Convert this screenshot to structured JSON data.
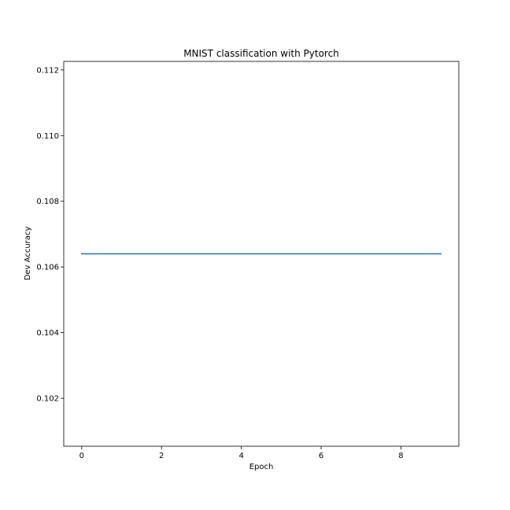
{
  "chart_data": {
    "type": "line",
    "title": "MNIST classification with Pytorch",
    "xlabel": "Epoch",
    "ylabel": "Dev Accuracy",
    "x": [
      0,
      1,
      2,
      3,
      4,
      5,
      6,
      7,
      8,
      9
    ],
    "series": [
      {
        "values": [
          0.1064,
          0.1064,
          0.1064,
          0.1064,
          0.1064,
          0.1064,
          0.1064,
          0.1064,
          0.1064,
          0.1064
        ],
        "color": "#1f77b4"
      }
    ],
    "xlim": [
      -0.45,
      9.45
    ],
    "ylim": [
      0.10054,
      0.11226
    ],
    "xticks": [
      0,
      2,
      4,
      6,
      8
    ],
    "yticks": [
      0.102,
      0.104,
      0.106,
      0.108,
      0.11,
      0.112
    ],
    "xtick_labels": [
      "0",
      "2",
      "4",
      "6",
      "8"
    ],
    "ytick_labels": [
      "0.102",
      "0.104",
      "0.106",
      "0.108",
      "0.110",
      "0.112"
    ],
    "grid": false,
    "legend": false
  }
}
